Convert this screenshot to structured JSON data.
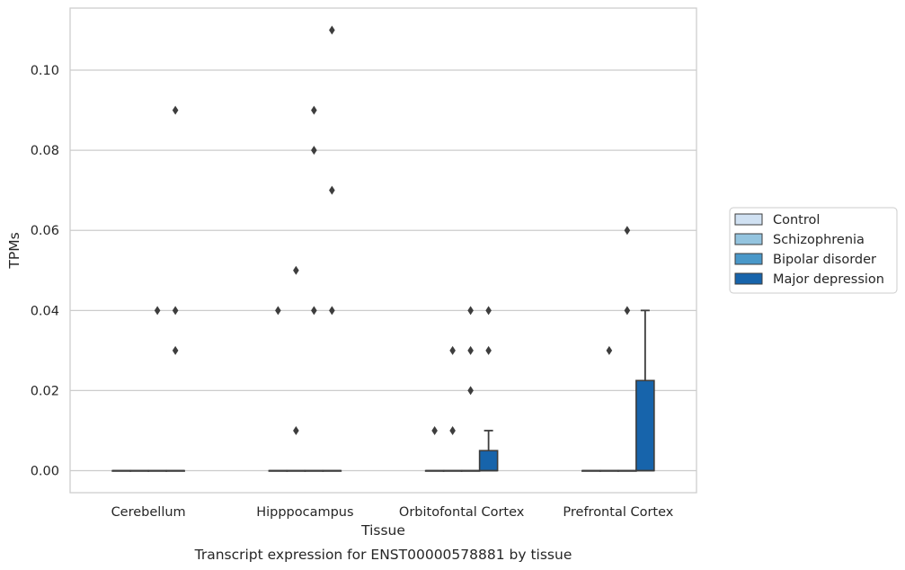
{
  "chart_data": {
    "type": "box",
    "title": "",
    "caption": "Transcript expression for ENST00000578881 by tissue",
    "xlabel": "Tissue",
    "ylabel": "TPMs",
    "ylim": [
      -0.0055,
      0.1155
    ],
    "yticks": [
      0.0,
      0.02,
      0.04,
      0.06,
      0.08,
      0.1
    ],
    "ytick_labels": [
      "0.00",
      "0.02",
      "0.04",
      "0.06",
      "0.08",
      "0.10"
    ],
    "grid": "horizontal",
    "legend_position": "right",
    "categories": [
      "Cerebellum",
      "Hipppocampus",
      "Orbitofontal Cortex",
      "Prefrontal Cortex"
    ],
    "series": [
      {
        "name": "Control",
        "color": "#d0e1f2",
        "boxes": [
          {
            "q1": 0.0,
            "median": 0.0,
            "q3": 0.0,
            "whisker_low": 0.0,
            "whisker_high": 0.0,
            "outliers": []
          },
          {
            "q1": 0.0,
            "median": 0.0,
            "q3": 0.0,
            "whisker_low": 0.0,
            "whisker_high": 0.0,
            "outliers": [
              0.04
            ]
          },
          {
            "q1": 0.0,
            "median": 0.0,
            "q3": 0.0,
            "whisker_low": 0.0,
            "whisker_high": 0.0,
            "outliers": [
              0.01
            ]
          },
          {
            "q1": 0.0,
            "median": 0.0,
            "q3": 0.0,
            "whisker_low": 0.0,
            "whisker_high": 0.0,
            "outliers": []
          }
        ]
      },
      {
        "name": "Schizophrenia",
        "color": "#94c4df",
        "boxes": [
          {
            "q1": 0.0,
            "median": 0.0,
            "q3": 0.0,
            "whisker_low": 0.0,
            "whisker_high": 0.0,
            "outliers": []
          },
          {
            "q1": 0.0,
            "median": 0.0,
            "q3": 0.0,
            "whisker_low": 0.0,
            "whisker_high": 0.0,
            "outliers": [
              0.01,
              0.05
            ]
          },
          {
            "q1": 0.0,
            "median": 0.0,
            "q3": 0.0,
            "whisker_low": 0.0,
            "whisker_high": 0.0,
            "outliers": [
              0.01,
              0.03
            ]
          },
          {
            "q1": 0.0,
            "median": 0.0,
            "q3": 0.0,
            "whisker_low": 0.0,
            "whisker_high": 0.0,
            "outliers": [
              0.03
            ]
          }
        ]
      },
      {
        "name": "Bipolar disorder",
        "color": "#4a98c9",
        "boxes": [
          {
            "q1": 0.0,
            "median": 0.0,
            "q3": 0.0,
            "whisker_low": 0.0,
            "whisker_high": 0.0,
            "outliers": [
              0.04
            ]
          },
          {
            "q1": 0.0,
            "median": 0.0,
            "q3": 0.0,
            "whisker_low": 0.0,
            "whisker_high": 0.0,
            "outliers": [
              0.04,
              0.08,
              0.09
            ]
          },
          {
            "q1": 0.0,
            "median": 0.0,
            "q3": 0.0,
            "whisker_low": 0.0,
            "whisker_high": 0.0,
            "outliers": [
              0.02,
              0.03,
              0.04
            ]
          },
          {
            "q1": 0.0,
            "median": 0.0,
            "q3": 0.0,
            "whisker_low": 0.0,
            "whisker_high": 0.0,
            "outliers": [
              0.04,
              0.06
            ]
          }
        ]
      },
      {
        "name": "Major depression",
        "color": "#1764ab",
        "boxes": [
          {
            "q1": 0.0,
            "median": 0.0,
            "q3": 0.0,
            "whisker_low": 0.0,
            "whisker_high": 0.0,
            "outliers": [
              0.03,
              0.04,
              0.09
            ]
          },
          {
            "q1": 0.0,
            "median": 0.0,
            "q3": 0.0,
            "whisker_low": 0.0,
            "whisker_high": 0.0,
            "outliers": [
              0.04,
              0.07,
              0.11
            ]
          },
          {
            "q1": 0.0,
            "median": 0.0,
            "q3": 0.005,
            "whisker_low": 0.0,
            "whisker_high": 0.01,
            "outliers": [
              0.03,
              0.04
            ]
          },
          {
            "q1": 0.0,
            "median": 0.0,
            "q3": 0.0225,
            "whisker_low": 0.0,
            "whisker_high": 0.04,
            "outliers": []
          }
        ]
      }
    ]
  }
}
